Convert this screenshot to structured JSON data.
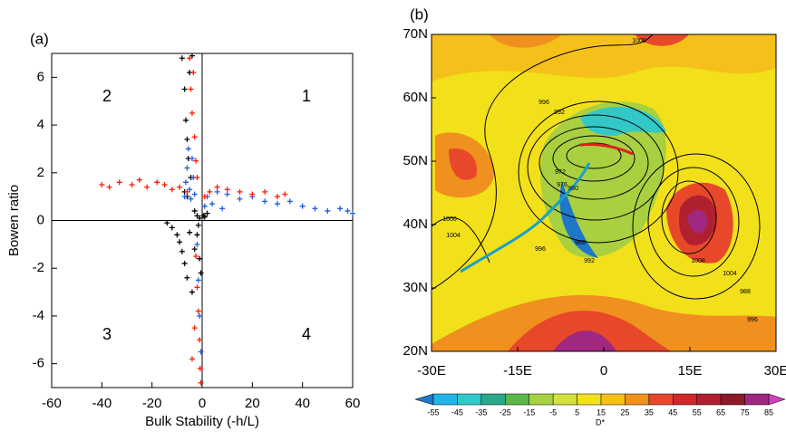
{
  "chart_data": [
    {
      "type": "scatter",
      "title": "(a)",
      "xlabel": "Bulk Stability (-h/L)",
      "ylabel": "Bowen ratio",
      "xlim": [
        -60,
        60
      ],
      "xticks": [
        -60,
        -40,
        -20,
        0,
        20,
        40,
        60
      ],
      "ylim": [
        -7,
        7
      ],
      "yticks": [
        -6,
        -4,
        -2,
        0,
        2,
        4,
        6
      ],
      "annotations": [
        "1",
        "2",
        "3",
        "4"
      ],
      "series": [
        {
          "name": "black",
          "color": "#000000",
          "x": [
            -8,
            -7,
            -6.5,
            -6,
            -5.5,
            -5,
            -4.5,
            -4,
            -7,
            -6,
            -3,
            -2,
            -1,
            -14,
            -12,
            -10,
            -9,
            -8,
            -7,
            -6,
            -5,
            -4,
            -3,
            -2,
            -1.5,
            -1,
            -0.5,
            1,
            2,
            0.5
          ],
          "y": [
            6.8,
            5.5,
            4.2,
            3.4,
            2.6,
            6.2,
            1.8,
            6.9,
            1.2,
            1.0,
            0.4,
            0.2,
            0.1,
            -0.1,
            -0.3,
            -0.6,
            -0.9,
            -1.3,
            -1.8,
            -2.4,
            -0.5,
            -3.0,
            -1.2,
            -0.6,
            -0.2,
            -1.6,
            -2.2,
            0.15,
            0.3,
            0.2
          ]
        },
        {
          "name": "blue",
          "color": "#1f5fe0",
          "x": [
            -7,
            -6.5,
            -6,
            -5.5,
            -5,
            -4.5,
            -4,
            -3.5,
            -3,
            2,
            6,
            10,
            15,
            20,
            25,
            30,
            35,
            40,
            45,
            50,
            55,
            58,
            60,
            -2,
            -1.5,
            -1,
            -0.5,
            1,
            4,
            8
          ],
          "y": [
            1.0,
            1.6,
            2.2,
            3.0,
            1.3,
            0.9,
            2.6,
            1.8,
            1.1,
            1.0,
            1.2,
            1.1,
            0.9,
            1.0,
            0.8,
            0.7,
            0.8,
            0.6,
            0.5,
            0.4,
            0.5,
            0.4,
            0.3,
            -1.0,
            -2.5,
            -4.0,
            -5.5,
            0.6,
            0.7,
            0.5
          ]
        },
        {
          "name": "red",
          "color": "#ff1a00",
          "x": [
            -40,
            -37,
            -33,
            -28,
            -25,
            -22,
            -18,
            -15,
            -12,
            -9,
            -6,
            -5,
            -4.5,
            -4,
            -3.5,
            -3,
            -2.5,
            -2,
            1,
            3,
            6,
            10,
            15,
            20,
            25,
            30,
            33,
            -2.5,
            -2,
            -1.5,
            -1,
            -0.8,
            -0.5,
            -3,
            -4
          ],
          "y": [
            1.5,
            1.4,
            1.6,
            1.5,
            1.7,
            1.4,
            1.6,
            1.5,
            1.3,
            1.4,
            1.2,
            6.8,
            5.5,
            4.5,
            6.2,
            3.5,
            2.5,
            1.8,
            1.0,
            1.2,
            1.4,
            1.3,
            1.2,
            1.1,
            1.2,
            1.0,
            1.1,
            -1.5,
            -2.8,
            -3.8,
            -5.0,
            -6.2,
            -6.8,
            -4.5,
            -5.8
          ]
        }
      ]
    },
    {
      "type": "map",
      "title": "(b)",
      "xlim": [
        -30,
        30
      ],
      "xticks": [
        {
          "value": -30,
          "label": "-30E"
        },
        {
          "value": -15,
          "label": "-15E"
        },
        0,
        {
          "value": 15,
          "label": "15E"
        },
        {
          "value": 30,
          "label": "30E"
        }
      ],
      "ylim": [
        20,
        70
      ],
      "yticks": [
        {
          "value": 20,
          "label": "20N"
        },
        {
          "value": 30,
          "label": "30N"
        },
        {
          "value": 40,
          "label": "40N"
        },
        {
          "value": 50,
          "label": "50N"
        },
        {
          "value": 60,
          "label": "60N"
        },
        {
          "value": 70,
          "label": "70N"
        }
      ],
      "contour_labels": [
        1000,
        996,
        992,
        988,
        980,
        976,
        972,
        992,
        1000,
        1004,
        996,
        1008,
        1004,
        988,
        996
      ],
      "colorbar": {
        "label": "D*",
        "ticks": [
          -55,
          -45,
          -35,
          -25,
          -15,
          -5,
          5,
          15,
          25,
          35,
          45,
          55,
          65,
          75,
          85
        ],
        "colors": [
          "#1f77c8",
          "#22b4e8",
          "#33c8c8",
          "#2aa88a",
          "#5cb84a",
          "#a8d040",
          "#d4e040",
          "#f2e01a",
          "#f5c01a",
          "#f0901e",
          "#e8482a",
          "#d0282a",
          "#b02030",
          "#8c1a28",
          "#a02880",
          "#d040c0"
        ]
      }
    }
  ]
}
